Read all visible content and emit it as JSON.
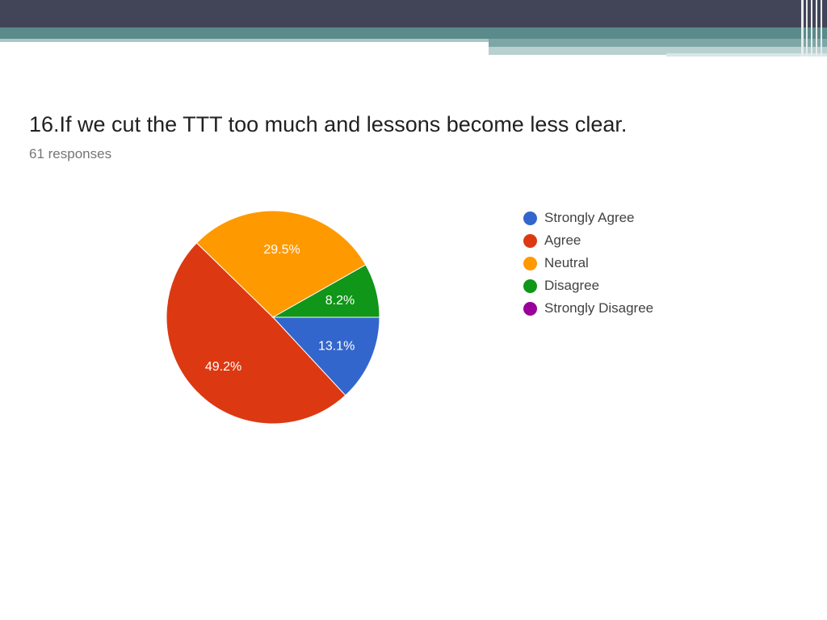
{
  "colors": {
    "banner_dark": "#424457",
    "banner_teal": "#5a8a8a",
    "strongly_agree": "#3366cc",
    "agree": "#dc3912",
    "neutral": "#ff9900",
    "disagree": "#109618",
    "strongly_disagree": "#990099"
  },
  "question": {
    "title": "16.If we cut the TTT too much and lessons become less clear.",
    "responses": "61 responses"
  },
  "chart_data": {
    "type": "pie",
    "title": "16.If we cut the TTT too much and lessons become less clear.",
    "legend_position": "right",
    "slices": [
      {
        "label": "Strongly Agree",
        "value": 13.1,
        "display": "13.1%",
        "color": "#3366cc"
      },
      {
        "label": "Agree",
        "value": 49.2,
        "display": "49.2%",
        "color": "#dc3912"
      },
      {
        "label": "Neutral",
        "value": 29.5,
        "display": "29.5%",
        "color": "#ff9900"
      },
      {
        "label": "Disagree",
        "value": 8.2,
        "display": "8.2%",
        "color": "#109618"
      },
      {
        "label": "Strongly Disagree",
        "value": 0,
        "display": "",
        "color": "#990099"
      }
    ]
  }
}
